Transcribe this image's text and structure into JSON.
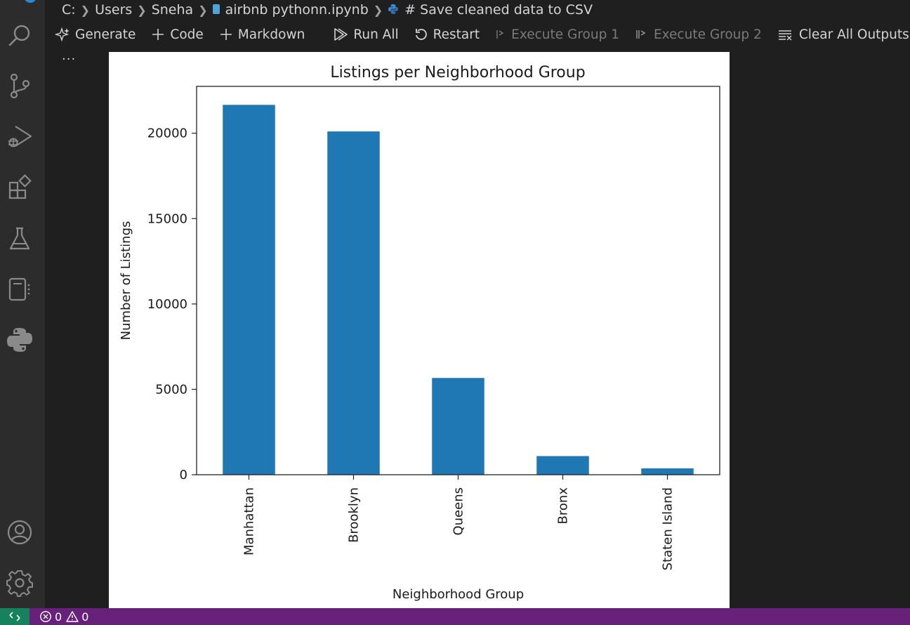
{
  "breadcrumb": {
    "items": [
      "C:",
      "Users",
      "Sneha",
      "airbnb pythonn.ipynb",
      "# Save cleaned data to CSV"
    ]
  },
  "toolbar": {
    "generate": "Generate",
    "code": "Code",
    "markdown": "Markdown",
    "run_all": "Run All",
    "restart": "Restart",
    "execute_group_1": "Execute Group 1",
    "execute_group_2": "Execute Group 2",
    "clear_all_outputs": "Clear All Outputs",
    "more": "···"
  },
  "activity_bar": {
    "icons": [
      "search-icon",
      "source-control-icon",
      "run-debug-icon",
      "extensions-icon",
      "testing-icon",
      "notebook-icon",
      "python-icon",
      "account-icon",
      "settings-gear-icon"
    ]
  },
  "status_bar": {
    "errors": "0",
    "warnings": "0"
  },
  "colors": {
    "bar": "#1f77b4",
    "status_bar": "#68217a",
    "remote": "#16825d"
  },
  "chart_data": {
    "type": "bar",
    "title": "Listings per Neighborhood Group",
    "xlabel": "Neighborhood Group",
    "ylabel": "Number of Listings",
    "categories": [
      "Manhattan",
      "Brooklyn",
      "Queens",
      "Bronx",
      "Staten Island"
    ],
    "values": [
      21661,
      20104,
      5666,
      1091,
      373
    ],
    "ylim": [
      0,
      22744
    ],
    "yticks": [
      0,
      5000,
      10000,
      15000,
      20000
    ],
    "grid": false,
    "legend": "none"
  }
}
